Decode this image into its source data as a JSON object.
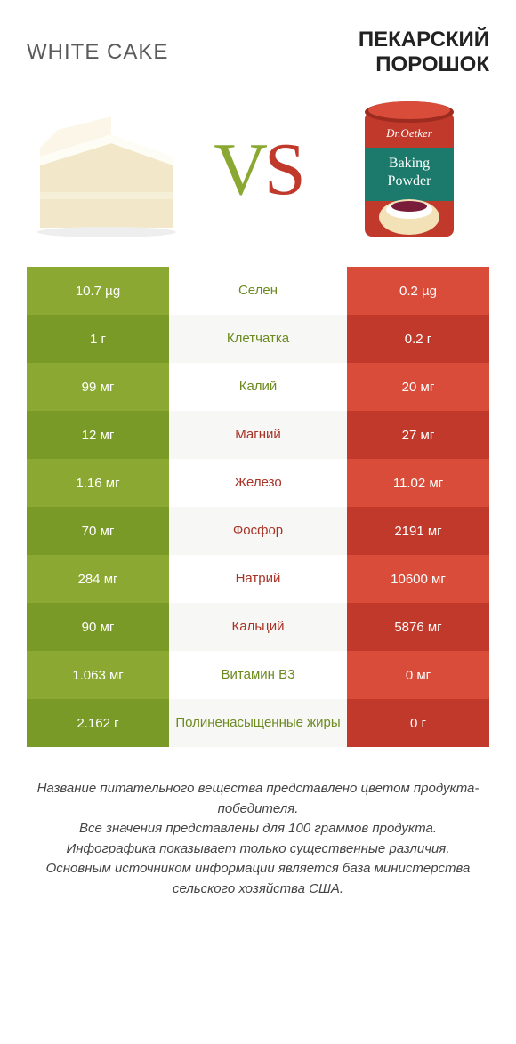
{
  "header": {
    "left_title": "WHITE CAKE",
    "right_title_line1": "ПЕКАРСКИЙ",
    "right_title_line2": "ПОРОШОК"
  },
  "vs": {
    "v": "V",
    "s": "S"
  },
  "colors": {
    "green": "#8aa832",
    "green_alt": "#7a9a28",
    "red": "#d94c3a",
    "red_alt": "#c0392b",
    "mid_green_text": "#6c8a1f",
    "mid_red_text": "#a93226"
  },
  "rows": [
    {
      "left": "10.7 µg",
      "mid": "Селен",
      "right": "0.2 µg",
      "winner": "left"
    },
    {
      "left": "1 г",
      "mid": "Клетчатка",
      "right": "0.2 г",
      "winner": "left"
    },
    {
      "left": "99 мг",
      "mid": "Калий",
      "right": "20 мг",
      "winner": "left"
    },
    {
      "left": "12 мг",
      "mid": "Магний",
      "right": "27 мг",
      "winner": "right"
    },
    {
      "left": "1.16 мг",
      "mid": "Железо",
      "right": "11.02 мг",
      "winner": "right"
    },
    {
      "left": "70 мг",
      "mid": "Фосфор",
      "right": "2191 мг",
      "winner": "right"
    },
    {
      "left": "284 мг",
      "mid": "Натрий",
      "right": "10600 мг",
      "winner": "right"
    },
    {
      "left": "90 мг",
      "mid": "Кальций",
      "right": "5876 мг",
      "winner": "right"
    },
    {
      "left": "1.063 мг",
      "mid": "Витамин B3",
      "right": "0 мг",
      "winner": "left"
    },
    {
      "left": "2.162 г",
      "mid": "Полиненасыщенные жиры",
      "right": "0 г",
      "winner": "left"
    }
  ],
  "footnotes": {
    "l1": "Название питательного вещества представлено цветом продукта-победителя.",
    "l2": "Все значения представлены для 100 граммов продукта.",
    "l3": "Инфографика показывает только существенные различия.",
    "l4": "Основным источником информации является база министерства сельского хозяйства США."
  },
  "can_label": {
    "brand": "Dr.Oetker",
    "product": "Baking Powder"
  }
}
